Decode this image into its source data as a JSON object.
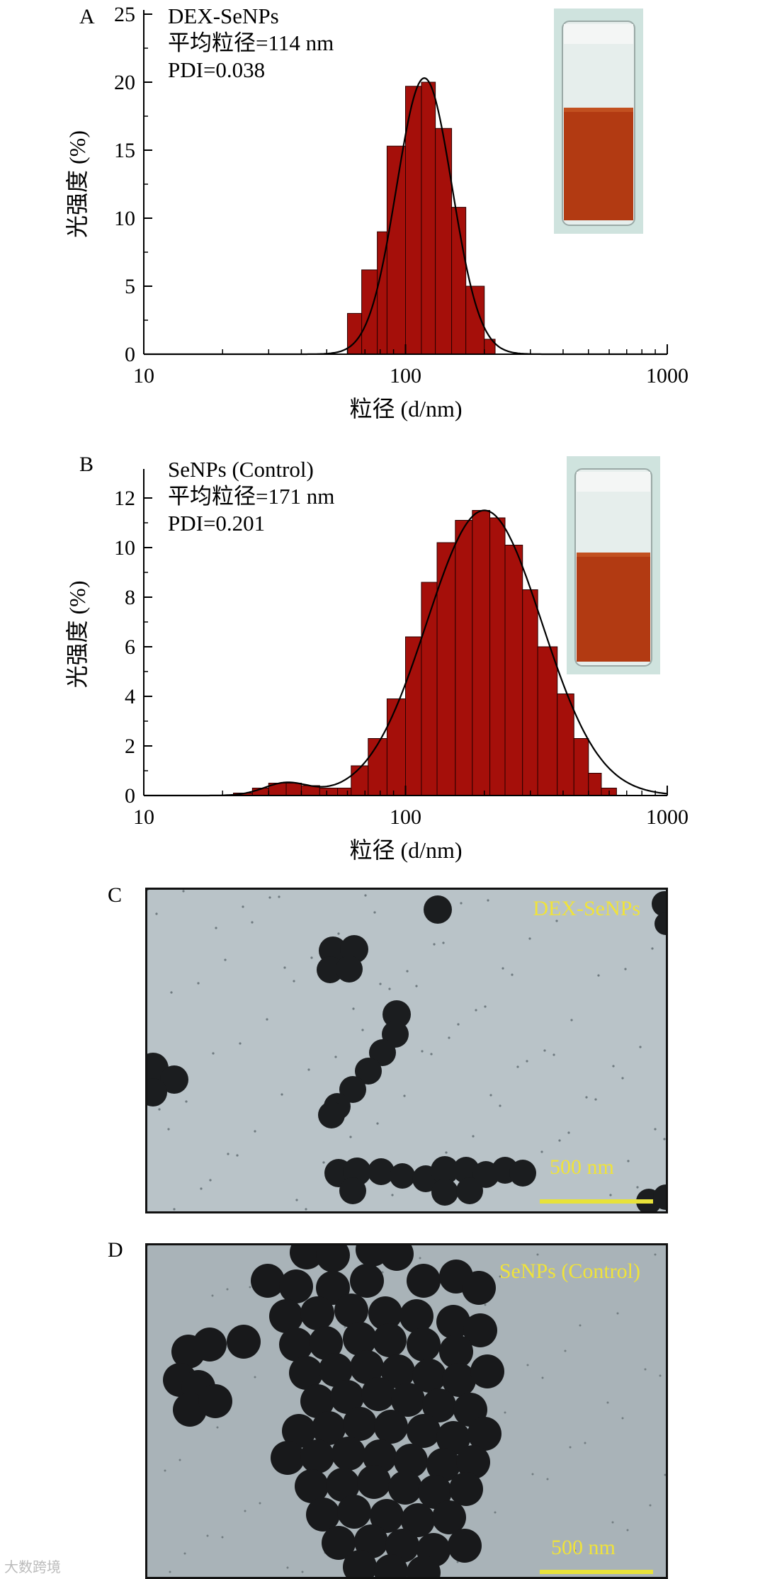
{
  "chart_data": [
    {
      "type": "bar",
      "panel_label": "A",
      "annotations": [
        "DEX-SeNPs",
        "平均粒径=114 nm",
        "PDI=0.038"
      ],
      "xlabel": "粒径 (d/nm)",
      "ylabel": "光强度 (%)",
      "x_scale": "log",
      "xlim": [
        10,
        1000
      ],
      "ylim": [
        0,
        25
      ],
      "xticks": [
        10,
        100,
        1000
      ],
      "yticks": [
        0,
        5,
        10,
        15,
        20,
        25
      ],
      "bins": [
        {
          "x0": 60,
          "x1": 68,
          "y": 3.0
        },
        {
          "x0": 68,
          "x1": 78,
          "y": 6.2
        },
        {
          "x0": 78,
          "x1": 85,
          "y": 9.0
        },
        {
          "x0": 85,
          "x1": 100,
          "y": 15.3
        },
        {
          "x0": 100,
          "x1": 115,
          "y": 19.7
        },
        {
          "x0": 115,
          "x1": 130,
          "y": 20.0
        },
        {
          "x0": 130,
          "x1": 150,
          "y": 16.6
        },
        {
          "x0": 150,
          "x1": 170,
          "y": 10.8
        },
        {
          "x0": 170,
          "x1": 200,
          "y": 5.0
        },
        {
          "x0": 200,
          "x1": 220,
          "y": 1.1
        }
      ],
      "fit_curve": {
        "peak_x": 118,
        "peak_y": 20.3,
        "sigma_log10": 0.106
      },
      "bar_color": "#a50f0a",
      "inset": "vial-photo"
    },
    {
      "type": "bar",
      "panel_label": "B",
      "annotations": [
        "SeNPs (Control)",
        "平均粒径=171 nm",
        "PDI=0.201"
      ],
      "xlabel": "粒径 (d/nm)",
      "ylabel": "光强度 (%)",
      "x_scale": "log",
      "xlim": [
        10,
        1000
      ],
      "ylim": [
        0,
        13
      ],
      "xticks": [
        10,
        100,
        1000
      ],
      "yticks": [
        0,
        2,
        4,
        6,
        8,
        10,
        12
      ],
      "bins": [
        {
          "x0": 22,
          "x1": 26,
          "y": 0.1
        },
        {
          "x0": 26,
          "x1": 30,
          "y": 0.3
        },
        {
          "x0": 30,
          "x1": 35,
          "y": 0.5
        },
        {
          "x0": 35,
          "x1": 40,
          "y": 0.5
        },
        {
          "x0": 40,
          "x1": 47,
          "y": 0.4
        },
        {
          "x0": 47,
          "x1": 55,
          "y": 0.3
        },
        {
          "x0": 55,
          "x1": 62,
          "y": 0.3
        },
        {
          "x0": 62,
          "x1": 72,
          "y": 1.2
        },
        {
          "x0": 72,
          "x1": 85,
          "y": 2.3
        },
        {
          "x0": 85,
          "x1": 100,
          "y": 3.9
        },
        {
          "x0": 100,
          "x1": 115,
          "y": 6.4
        },
        {
          "x0": 115,
          "x1": 132,
          "y": 8.6
        },
        {
          "x0": 132,
          "x1": 155,
          "y": 10.2
        },
        {
          "x0": 155,
          "x1": 180,
          "y": 11.1
        },
        {
          "x0": 180,
          "x1": 210,
          "y": 11.5
        },
        {
          "x0": 210,
          "x1": 240,
          "y": 11.2
        },
        {
          "x0": 240,
          "x1": 280,
          "y": 10.1
        },
        {
          "x0": 280,
          "x1": 320,
          "y": 8.3
        },
        {
          "x0": 320,
          "x1": 380,
          "y": 6.0
        },
        {
          "x0": 380,
          "x1": 440,
          "y": 4.1
        },
        {
          "x0": 440,
          "x1": 500,
          "y": 2.3
        },
        {
          "x0": 500,
          "x1": 560,
          "y": 0.9
        },
        {
          "x0": 560,
          "x1": 640,
          "y": 0.3
        }
      ],
      "fit_curve": {
        "components": [
          {
            "peak_x": 200,
            "peak_y": 11.5,
            "sigma_log10": 0.22
          },
          {
            "peak_x": 35,
            "peak_y": 0.5,
            "sigma_log10": 0.085
          }
        ]
      },
      "bar_color": "#a50f0a",
      "inset": "vial-photo"
    }
  ],
  "tem": [
    {
      "panel_label": "C",
      "sample_label": "DEX-SeNPs",
      "scale_label": "500 nm"
    },
    {
      "panel_label": "D",
      "sample_label": "SeNPs (Control)",
      "scale_label": "500 nm"
    }
  ],
  "watermark": "大数跨境"
}
